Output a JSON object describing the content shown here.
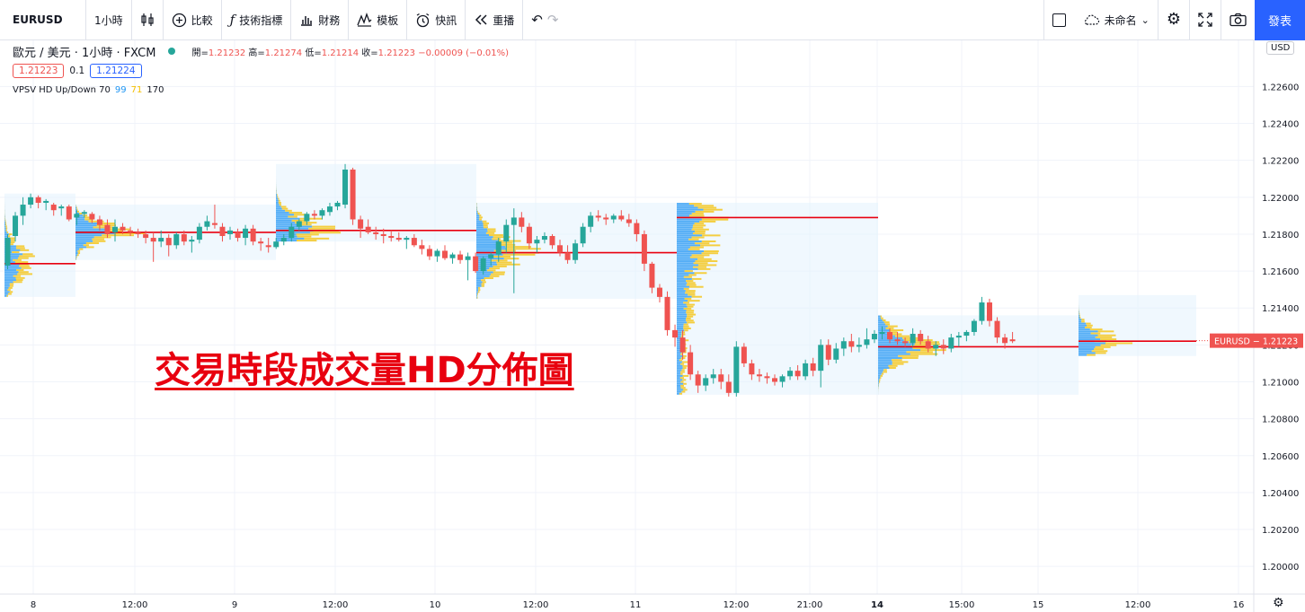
{
  "toolbar": {
    "symbol": "EURUSD",
    "interval": "1小時",
    "compare": "比較",
    "indicators": "技術指標",
    "financials": "財務",
    "templates": "模板",
    "alert": "快訊",
    "replay": "重播",
    "layout_name": "未命名",
    "publish": "發表"
  },
  "legend": {
    "title": "歐元 / 美元 · 1小時 · FXCM",
    "open_label": "開=",
    "open": "1.21232",
    "high_label": "高=",
    "high": "1.21274",
    "low_label": "低=",
    "low": "1.21214",
    "close_label": "收=",
    "close": "1.21223",
    "change": "−0.00009 (−0.01%)",
    "bid": "1.21223",
    "spread": "0.1",
    "ask": "1.21224",
    "indicator_name": "VPSV HD Up/Down 70",
    "indicator_p1": "99",
    "indicator_p2": "71",
    "indicator_p3": "170"
  },
  "annotation": "交易時段成交量HD分佈圖",
  "currency_badge": "USD",
  "colors": {
    "up": "#26a69a",
    "down": "#ef5350",
    "vol_up": "#2196f3",
    "vol_down": "#f5c000",
    "poc": "#e8000f",
    "accent": "#2962ff"
  },
  "chart_data": {
    "type": "candlestick",
    "symbol": "EURUSD",
    "ylim": [
      1.1985,
      1.2285
    ],
    "y_ticks": [
      "1.22600",
      "1.22400",
      "1.22200",
      "1.22000",
      "1.21800",
      "1.21600",
      "1.21400",
      "1.21200",
      "1.21000",
      "1.20800",
      "1.20600",
      "1.20400",
      "1.20200",
      "1.20000"
    ],
    "x_ticks": [
      "8",
      "12:00",
      "9",
      "12:00",
      "10",
      "12:00",
      "11",
      "12:00",
      "21:00",
      "14",
      "15:00",
      "15",
      "12:00",
      "16"
    ],
    "last_price_label": "EURUSD − 1.21223",
    "last_price": 1.21223,
    "sessions": [
      {
        "top": 1.2202,
        "bottom": 1.2146,
        "poc": 1.2164
      },
      {
        "top": 1.2196,
        "bottom": 1.2166,
        "poc": 1.2181
      },
      {
        "top": 1.2218,
        "bottom": 1.2176,
        "poc": 1.2182
      },
      {
        "top": 1.2197,
        "bottom": 1.2145,
        "poc": 1.217
      },
      {
        "top": 1.2197,
        "bottom": 1.2093,
        "poc": 1.2189
      },
      {
        "top": 1.2136,
        "bottom": 1.2093,
        "poc": 1.2119
      },
      {
        "top": 1.2147,
        "bottom": 1.2114,
        "poc": 1.2122
      }
    ],
    "candles": [
      {
        "t": 0,
        "o": 1.2163,
        "h": 1.218,
        "l": 1.2161,
        "c": 1.2178
      },
      {
        "t": 3,
        "o": 1.2179,
        "h": 1.2192,
        "l": 1.2176,
        "c": 1.219
      },
      {
        "t": 6,
        "o": 1.219,
        "h": 1.22,
        "l": 1.2185,
        "c": 1.2196
      },
      {
        "t": 9,
        "o": 1.2196,
        "h": 1.2202,
        "l": 1.2194,
        "c": 1.22
      },
      {
        "t": 12,
        "o": 1.22,
        "h": 1.2201,
        "l": 1.2194,
        "c": 1.2197
      },
      {
        "t": 15,
        "o": 1.2197,
        "h": 1.2199,
        "l": 1.2193,
        "c": 1.2198
      },
      {
        "t": 18,
        "o": 1.2196,
        "h": 1.2197,
        "l": 1.219,
        "c": 1.2193
      },
      {
        "t": 21,
        "o": 1.2194,
        "h": 1.2196,
        "l": 1.219,
        "c": 1.2195
      },
      {
        "t": 24,
        "o": 1.2195,
        "h": 1.2196,
        "l": 1.2187,
        "c": 1.2188
      },
      {
        "t": 27,
        "o": 1.2189,
        "h": 1.2193,
        "l": 1.2185,
        "c": 1.2191
      },
      {
        "t": 30,
        "o": 1.2191,
        "h": 1.2193,
        "l": 1.2189,
        "c": 1.2192
      },
      {
        "t": 33,
        "o": 1.2191,
        "h": 1.2192,
        "l": 1.2186,
        "c": 1.2188
      },
      {
        "t": 36,
        "o": 1.2188,
        "h": 1.219,
        "l": 1.2182,
        "c": 1.2185
      },
      {
        "t": 39,
        "o": 1.2185,
        "h": 1.2188,
        "l": 1.2178,
        "c": 1.218
      },
      {
        "t": 42,
        "o": 1.2181,
        "h": 1.2188,
        "l": 1.2176,
        "c": 1.2184
      },
      {
        "t": 45,
        "o": 1.2184,
        "h": 1.2186,
        "l": 1.218,
        "c": 1.2182
      },
      {
        "t": 48,
        "o": 1.2182,
        "h": 1.2184,
        "l": 1.2179,
        "c": 1.2181
      },
      {
        "t": 51,
        "o": 1.2181,
        "h": 1.2183,
        "l": 1.2178,
        "c": 1.218
      },
      {
        "t": 54,
        "o": 1.218,
        "h": 1.2182,
        "l": 1.2175,
        "c": 1.2178
      },
      {
        "t": 57,
        "o": 1.2178,
        "h": 1.2181,
        "l": 1.2165,
        "c": 1.2176
      },
      {
        "t": 60,
        "o": 1.2176,
        "h": 1.2182,
        "l": 1.2173,
        "c": 1.2178
      },
      {
        "t": 63,
        "o": 1.2178,
        "h": 1.218,
        "l": 1.2168,
        "c": 1.2174
      },
      {
        "t": 66,
        "o": 1.2174,
        "h": 1.2181,
        "l": 1.2172,
        "c": 1.218
      },
      {
        "t": 69,
        "o": 1.218,
        "h": 1.2182,
        "l": 1.2174,
        "c": 1.2176
      },
      {
        "t": 72,
        "o": 1.2176,
        "h": 1.2179,
        "l": 1.217,
        "c": 1.2177
      },
      {
        "t": 75,
        "o": 1.2177,
        "h": 1.2186,
        "l": 1.2175,
        "c": 1.2184
      },
      {
        "t": 78,
        "o": 1.2184,
        "h": 1.219,
        "l": 1.2182,
        "c": 1.2187
      },
      {
        "t": 81,
        "o": 1.2186,
        "h": 1.2196,
        "l": 1.2183,
        "c": 1.2185
      },
      {
        "t": 84,
        "o": 1.2184,
        "h": 1.2186,
        "l": 1.2176,
        "c": 1.2179
      },
      {
        "t": 87,
        "o": 1.218,
        "h": 1.2184,
        "l": 1.2177,
        "c": 1.2182
      },
      {
        "t": 90,
        "o": 1.2181,
        "h": 1.2183,
        "l": 1.2176,
        "c": 1.2178
      },
      {
        "t": 93,
        "o": 1.2178,
        "h": 1.2185,
        "l": 1.2174,
        "c": 1.2183
      },
      {
        "t": 96,
        "o": 1.2183,
        "h": 1.2185,
        "l": 1.2174,
        "c": 1.2176
      },
      {
        "t": 99,
        "o": 1.2176,
        "h": 1.2178,
        "l": 1.2171,
        "c": 1.2175
      },
      {
        "t": 102,
        "o": 1.2174,
        "h": 1.2178,
        "l": 1.217,
        "c": 1.2173
      },
      {
        "t": 105,
        "o": 1.2173,
        "h": 1.2178,
        "l": 1.2172,
        "c": 1.2176
      },
      {
        "t": 108,
        "o": 1.2176,
        "h": 1.218,
        "l": 1.2174,
        "c": 1.2178
      },
      {
        "t": 111,
        "o": 1.2178,
        "h": 1.2186,
        "l": 1.2176,
        "c": 1.2184
      },
      {
        "t": 114,
        "o": 1.2184,
        "h": 1.2188,
        "l": 1.2182,
        "c": 1.2187
      },
      {
        "t": 117,
        "o": 1.2187,
        "h": 1.2192,
        "l": 1.2185,
        "c": 1.2191
      },
      {
        "t": 120,
        "o": 1.2191,
        "h": 1.2193,
        "l": 1.2188,
        "c": 1.219
      },
      {
        "t": 123,
        "o": 1.219,
        "h": 1.2194,
        "l": 1.2188,
        "c": 1.2193
      },
      {
        "t": 126,
        "o": 1.2192,
        "h": 1.2197,
        "l": 1.219,
        "c": 1.2195
      },
      {
        "t": 129,
        "o": 1.2195,
        "h": 1.2198,
        "l": 1.2193,
        "c": 1.2197
      },
      {
        "t": 132,
        "o": 1.2196,
        "h": 1.2218,
        "l": 1.2194,
        "c": 1.2215
      },
      {
        "t": 135,
        "o": 1.2215,
        "h": 1.2216,
        "l": 1.2185,
        "c": 1.2188
      },
      {
        "t": 138,
        "o": 1.2188,
        "h": 1.219,
        "l": 1.2178,
        "c": 1.2183
      },
      {
        "t": 141,
        "o": 1.2184,
        "h": 1.2188,
        "l": 1.218,
        "c": 1.2181
      },
      {
        "t": 144,
        "o": 1.2181,
        "h": 1.2184,
        "l": 1.2177,
        "c": 1.218
      },
      {
        "t": 147,
        "o": 1.218,
        "h": 1.2183,
        "l": 1.2175,
        "c": 1.2179
      },
      {
        "t": 150,
        "o": 1.2179,
        "h": 1.2182,
        "l": 1.2176,
        "c": 1.2178
      },
      {
        "t": 153,
        "o": 1.2178,
        "h": 1.2181,
        "l": 1.2176,
        "c": 1.2177
      },
      {
        "t": 156,
        "o": 1.2177,
        "h": 1.2179,
        "l": 1.2172,
        "c": 1.2178
      },
      {
        "t": 159,
        "o": 1.2178,
        "h": 1.218,
        "l": 1.2173,
        "c": 1.2174
      },
      {
        "t": 162,
        "o": 1.2174,
        "h": 1.2177,
        "l": 1.2169,
        "c": 1.2172
      },
      {
        "t": 165,
        "o": 1.2172,
        "h": 1.2174,
        "l": 1.2166,
        "c": 1.2168
      },
      {
        "t": 168,
        "o": 1.2168,
        "h": 1.2172,
        "l": 1.2165,
        "c": 1.2171
      },
      {
        "t": 171,
        "o": 1.2171,
        "h": 1.2174,
        "l": 1.2166,
        "c": 1.2167
      },
      {
        "t": 174,
        "o": 1.2167,
        "h": 1.217,
        "l": 1.2164,
        "c": 1.2169
      },
      {
        "t": 177,
        "o": 1.2169,
        "h": 1.2171,
        "l": 1.2164,
        "c": 1.2166
      },
      {
        "t": 180,
        "o": 1.2166,
        "h": 1.217,
        "l": 1.2155,
        "c": 1.2168
      },
      {
        "t": 183,
        "o": 1.2168,
        "h": 1.217,
        "l": 1.2159,
        "c": 1.216
      },
      {
        "t": 186,
        "o": 1.216,
        "h": 1.2168,
        "l": 1.2158,
        "c": 1.2167
      },
      {
        "t": 189,
        "o": 1.2167,
        "h": 1.217,
        "l": 1.2163,
        "c": 1.2169
      },
      {
        "t": 192,
        "o": 1.2169,
        "h": 1.2178,
        "l": 1.2165,
        "c": 1.2176
      },
      {
        "t": 195,
        "o": 1.2176,
        "h": 1.2188,
        "l": 1.217,
        "c": 1.2185
      },
      {
        "t": 198,
        "o": 1.2185,
        "h": 1.2194,
        "l": 1.2148,
        "c": 1.2189
      },
      {
        "t": 201,
        "o": 1.2189,
        "h": 1.2192,
        "l": 1.2181,
        "c": 1.2184
      },
      {
        "t": 204,
        "o": 1.2184,
        "h": 1.2186,
        "l": 1.2172,
        "c": 1.2175
      },
      {
        "t": 207,
        "o": 1.2175,
        "h": 1.2179,
        "l": 1.217,
        "c": 1.2177
      },
      {
        "t": 210,
        "o": 1.2177,
        "h": 1.2181,
        "l": 1.2175,
        "c": 1.2179
      },
      {
        "t": 213,
        "o": 1.2179,
        "h": 1.218,
        "l": 1.2172,
        "c": 1.2174
      },
      {
        "t": 216,
        "o": 1.2174,
        "h": 1.2177,
        "l": 1.2168,
        "c": 1.217
      },
      {
        "t": 219,
        "o": 1.217,
        "h": 1.2174,
        "l": 1.2164,
        "c": 1.2166
      },
      {
        "t": 222,
        "o": 1.2166,
        "h": 1.2177,
        "l": 1.2164,
        "c": 1.2175
      },
      {
        "t": 225,
        "o": 1.2175,
        "h": 1.2186,
        "l": 1.2173,
        "c": 1.2184
      },
      {
        "t": 228,
        "o": 1.2184,
        "h": 1.2192,
        "l": 1.2181,
        "c": 1.219
      },
      {
        "t": 231,
        "o": 1.219,
        "h": 1.2193,
        "l": 1.2187,
        "c": 1.2189
      },
      {
        "t": 234,
        "o": 1.2189,
        "h": 1.2191,
        "l": 1.2185,
        "c": 1.2188
      },
      {
        "t": 237,
        "o": 1.2188,
        "h": 1.2191,
        "l": 1.2186,
        "c": 1.219
      },
      {
        "t": 240,
        "o": 1.219,
        "h": 1.2193,
        "l": 1.2187,
        "c": 1.2188
      },
      {
        "t": 243,
        "o": 1.2188,
        "h": 1.2191,
        "l": 1.2184,
        "c": 1.2186
      },
      {
        "t": 246,
        "o": 1.2186,
        "h": 1.2188,
        "l": 1.2176,
        "c": 1.218
      },
      {
        "t": 249,
        "o": 1.218,
        "h": 1.2182,
        "l": 1.216,
        "c": 1.2164
      },
      {
        "t": 252,
        "o": 1.2164,
        "h": 1.2165,
        "l": 1.2148,
        "c": 1.2151
      },
      {
        "t": 255,
        "o": 1.2151,
        "h": 1.2153,
        "l": 1.2143,
        "c": 1.2146
      },
      {
        "t": 258,
        "o": 1.2146,
        "h": 1.2149,
        "l": 1.2125,
        "c": 1.2128
      },
      {
        "t": 261,
        "o": 1.2128,
        "h": 1.2131,
        "l": 1.2119,
        "c": 1.2124
      },
      {
        "t": 264,
        "o": 1.2124,
        "h": 1.2128,
        "l": 1.2112,
        "c": 1.2116
      },
      {
        "t": 267,
        "o": 1.2116,
        "h": 1.212,
        "l": 1.2101,
        "c": 1.2104
      },
      {
        "t": 270,
        "o": 1.2104,
        "h": 1.2106,
        "l": 1.2094,
        "c": 1.2098
      },
      {
        "t": 273,
        "o": 1.2098,
        "h": 1.2104,
        "l": 1.2095,
        "c": 1.2102
      },
      {
        "t": 276,
        "o": 1.2102,
        "h": 1.2107,
        "l": 1.2099,
        "c": 1.2104
      },
      {
        "t": 279,
        "o": 1.2104,
        "h": 1.2107,
        "l": 1.2096,
        "c": 1.21
      },
      {
        "t": 282,
        "o": 1.21,
        "h": 1.2104,
        "l": 1.2092,
        "c": 1.2094
      },
      {
        "t": 285,
        "o": 1.2094,
        "h": 1.2122,
        "l": 1.2092,
        "c": 1.2119
      },
      {
        "t": 288,
        "o": 1.2119,
        "h": 1.2121,
        "l": 1.2108,
        "c": 1.211
      },
      {
        "t": 291,
        "o": 1.211,
        "h": 1.2112,
        "l": 1.2101,
        "c": 1.2104
      },
      {
        "t": 294,
        "o": 1.2104,
        "h": 1.2107,
        "l": 1.21,
        "c": 1.2103
      },
      {
        "t": 297,
        "o": 1.2103,
        "h": 1.2105,
        "l": 1.2099,
        "c": 1.2102
      },
      {
        "t": 300,
        "o": 1.2102,
        "h": 1.2104,
        "l": 1.2098,
        "c": 1.21
      },
      {
        "t": 303,
        "o": 1.21,
        "h": 1.2104,
        "l": 1.2097,
        "c": 1.2103
      },
      {
        "t": 306,
        "o": 1.2103,
        "h": 1.2108,
        "l": 1.2101,
        "c": 1.2106
      },
      {
        "t": 309,
        "o": 1.2106,
        "h": 1.2109,
        "l": 1.2101,
        "c": 1.2103
      },
      {
        "t": 312,
        "o": 1.2103,
        "h": 1.2112,
        "l": 1.2101,
        "c": 1.211
      },
      {
        "t": 315,
        "o": 1.211,
        "h": 1.2113,
        "l": 1.2103,
        "c": 1.2106
      },
      {
        "t": 318,
        "o": 1.2106,
        "h": 1.2123,
        "l": 1.2097,
        "c": 1.212
      },
      {
        "t": 321,
        "o": 1.212,
        "h": 1.2123,
        "l": 1.2109,
        "c": 1.2112
      },
      {
        "t": 324,
        "o": 1.2112,
        "h": 1.2121,
        "l": 1.211,
        "c": 1.2118
      },
      {
        "t": 327,
        "o": 1.2118,
        "h": 1.2124,
        "l": 1.2114,
        "c": 1.2122
      },
      {
        "t": 330,
        "o": 1.2122,
        "h": 1.2126,
        "l": 1.2116,
        "c": 1.2119
      },
      {
        "t": 333,
        "o": 1.2119,
        "h": 1.2124,
        "l": 1.2116,
        "c": 1.212
      },
      {
        "t": 336,
        "o": 1.212,
        "h": 1.2129,
        "l": 1.2118,
        "c": 1.2123
      },
      {
        "t": 339,
        "o": 1.2123,
        "h": 1.2128,
        "l": 1.2121,
        "c": 1.2126
      },
      {
        "t": 342,
        "o": 1.2126,
        "h": 1.213,
        "l": 1.2123,
        "c": 1.2127
      },
      {
        "t": 345,
        "o": 1.2127,
        "h": 1.2129,
        "l": 1.2121,
        "c": 1.2123
      },
      {
        "t": 348,
        "o": 1.2123,
        "h": 1.2127,
        "l": 1.212,
        "c": 1.2122
      },
      {
        "t": 351,
        "o": 1.2122,
        "h": 1.2124,
        "l": 1.2119,
        "c": 1.2121
      },
      {
        "t": 354,
        "o": 1.2121,
        "h": 1.2129,
        "l": 1.2119,
        "c": 1.2126
      },
      {
        "t": 357,
        "o": 1.2126,
        "h": 1.2128,
        "l": 1.212,
        "c": 1.2122
      },
      {
        "t": 360,
        "o": 1.2122,
        "h": 1.2125,
        "l": 1.2116,
        "c": 1.2118
      },
      {
        "t": 363,
        "o": 1.2118,
        "h": 1.2122,
        "l": 1.2114,
        "c": 1.212
      },
      {
        "t": 366,
        "o": 1.212,
        "h": 1.2123,
        "l": 1.2115,
        "c": 1.2118
      },
      {
        "t": 369,
        "o": 1.2118,
        "h": 1.2126,
        "l": 1.2116,
        "c": 1.2124
      },
      {
        "t": 372,
        "o": 1.2124,
        "h": 1.2127,
        "l": 1.2119,
        "c": 1.2125
      },
      {
        "t": 375,
        "o": 1.2125,
        "h": 1.2128,
        "l": 1.2122,
        "c": 1.2127
      },
      {
        "t": 378,
        "o": 1.2127,
        "h": 1.2134,
        "l": 1.2125,
        "c": 1.2133
      },
      {
        "t": 381,
        "o": 1.2133,
        "h": 1.2146,
        "l": 1.2131,
        "c": 1.2143
      },
      {
        "t": 384,
        "o": 1.2143,
        "h": 1.2145,
        "l": 1.213,
        "c": 1.2133
      },
      {
        "t": 387,
        "o": 1.2133,
        "h": 1.2135,
        "l": 1.2121,
        "c": 1.2124
      },
      {
        "t": 390,
        "o": 1.2124,
        "h": 1.2126,
        "l": 1.2118,
        "c": 1.2121
      },
      {
        "t": 393,
        "o": 1.2123,
        "h": 1.2127,
        "l": 1.2121,
        "c": 1.2122
      }
    ]
  }
}
